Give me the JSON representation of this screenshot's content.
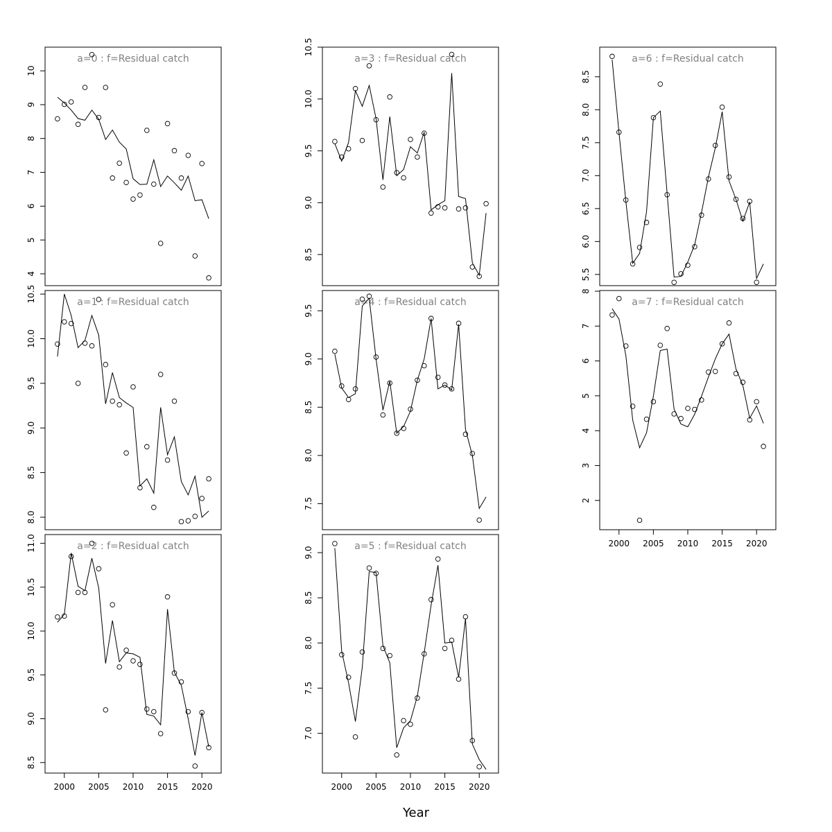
{
  "figure": {
    "xlabel": "Year"
  },
  "chart_data": [
    {
      "type": "scatter",
      "panel": "a=0",
      "title": "a=0  :  f=Residual catch",
      "years": [
        1999,
        2000,
        2001,
        2002,
        2003,
        2004,
        2005,
        2006,
        2007,
        2008,
        2009,
        2010,
        2011,
        2012,
        2013,
        2014,
        2015,
        2016,
        2017,
        2018,
        2019,
        2020,
        2021
      ],
      "observed": [
        8.58,
        9.01,
        9.08,
        8.42,
        9.51,
        10.48,
        8.62,
        9.51,
        6.83,
        7.27,
        6.7,
        6.21,
        6.33,
        8.24,
        6.65,
        4.9,
        8.44,
        7.64,
        6.83,
        7.5,
        4.53,
        7.26,
        3.88
      ],
      "fitted": [
        9.22,
        9.05,
        8.84,
        8.59,
        8.54,
        8.84,
        8.57,
        7.97,
        8.25,
        7.89,
        7.69,
        6.81,
        6.64,
        6.65,
        7.37,
        6.58,
        6.89,
        6.69,
        6.47,
        6.89,
        6.16,
        6.19,
        5.63
      ],
      "xlim": [
        1997.2,
        2022.8
      ],
      "ylim": [
        3.65,
        10.7
      ],
      "yticks": [
        4,
        5,
        6,
        7,
        8,
        9,
        10
      ],
      "xticks": [
        2000,
        2005,
        2010,
        2015,
        2020
      ],
      "show_xaxis": false
    },
    {
      "type": "scatter",
      "panel": "a=1",
      "title": "a=1  :  f=Residual catch",
      "years": [
        1999,
        2000,
        2001,
        2002,
        2003,
        2004,
        2005,
        2006,
        2007,
        2008,
        2009,
        2010,
        2011,
        2012,
        2013,
        2014,
        2015,
        2016,
        2017,
        2018,
        2019,
        2020,
        2021
      ],
      "observed": [
        9.94,
        10.19,
        10.17,
        9.5,
        9.95,
        9.92,
        10.44,
        9.71,
        9.3,
        9.26,
        8.72,
        9.46,
        8.33,
        8.79,
        8.11,
        9.6,
        8.64,
        9.3,
        7.95,
        7.96,
        8.01,
        8.21,
        8.43
      ],
      "fitted": [
        9.8,
        10.5,
        10.26,
        9.9,
        9.98,
        10.26,
        10.04,
        9.27,
        9.62,
        9.34,
        9.28,
        9.23,
        8.35,
        8.43,
        8.27,
        9.23,
        8.7,
        8.9,
        8.4,
        8.25,
        8.46,
        8.0,
        8.07
      ],
      "xlim": [
        1997.2,
        2022.8
      ],
      "ylim": [
        7.86,
        10.54
      ],
      "yticks": [
        8.0,
        8.5,
        9.0,
        9.5,
        10.0,
        10.5
      ],
      "xticks": [
        2000,
        2005,
        2010,
        2015,
        2020
      ],
      "show_xaxis": false
    },
    {
      "type": "scatter",
      "panel": "a=2",
      "title": "a=2  :  f=Residual catch",
      "years": [
        1999,
        2000,
        2001,
        2002,
        2003,
        2004,
        2005,
        2006,
        2007,
        2008,
        2009,
        2010,
        2011,
        2012,
        2013,
        2014,
        2015,
        2016,
        2017,
        2018,
        2019,
        2020,
        2021
      ],
      "observed": [
        10.16,
        10.17,
        10.85,
        10.44,
        10.44,
        11.0,
        10.71,
        9.1,
        10.3,
        9.59,
        9.78,
        9.66,
        9.62,
        9.11,
        9.08,
        8.83,
        10.39,
        9.52,
        9.42,
        9.08,
        8.46,
        9.07,
        8.67
      ],
      "fitted": [
        10.1,
        10.19,
        10.89,
        10.51,
        10.46,
        10.83,
        10.49,
        9.63,
        10.12,
        9.65,
        9.75,
        9.74,
        9.7,
        9.05,
        9.03,
        8.93,
        10.25,
        9.53,
        9.38,
        9.0,
        8.58,
        9.07,
        8.68
      ],
      "xlim": [
        1997.2,
        2022.8
      ],
      "ylim": [
        8.38,
        11.1
      ],
      "yticks": [
        8.5,
        9.0,
        9.5,
        10.0,
        10.5,
        11.0
      ],
      "xticks": [
        2000,
        2005,
        2010,
        2015,
        2020
      ],
      "show_xaxis": true
    },
    {
      "type": "scatter",
      "panel": "a=3",
      "title": "a=3  :  f=Residual catch",
      "years": [
        1999,
        2000,
        2001,
        2002,
        2003,
        2004,
        2005,
        2006,
        2007,
        2008,
        2009,
        2010,
        2011,
        2012,
        2013,
        2014,
        2015,
        2016,
        2017,
        2018,
        2019,
        2020,
        2021
      ],
      "observed": [
        9.59,
        9.44,
        9.52,
        10.1,
        9.6,
        10.32,
        9.8,
        9.15,
        10.02,
        9.29,
        9.24,
        9.61,
        9.44,
        9.67,
        8.9,
        8.96,
        8.95,
        10.43,
        8.94,
        8.95,
        8.38,
        8.29,
        8.99
      ],
      "fitted": [
        9.57,
        9.4,
        9.58,
        10.08,
        9.93,
        10.13,
        9.81,
        9.22,
        9.83,
        9.26,
        9.32,
        9.54,
        9.48,
        9.68,
        8.93,
        8.98,
        9.02,
        10.25,
        9.06,
        9.04,
        8.42,
        8.3,
        8.9
      ],
      "xlim": [
        1997.2,
        2022.8
      ],
      "ylim": [
        8.2,
        10.5
      ],
      "yticks": [
        8.5,
        9.0,
        9.5,
        10.0,
        10.5
      ],
      "xticks": [
        2000,
        2005,
        2010,
        2015,
        2020
      ],
      "show_xaxis": false
    },
    {
      "type": "scatter",
      "panel": "a=4",
      "title": "a=4  :  f=Residual catch",
      "years": [
        1999,
        2000,
        2001,
        2002,
        2003,
        2004,
        2005,
        2006,
        2007,
        2008,
        2009,
        2010,
        2011,
        2012,
        2013,
        2014,
        2015,
        2016,
        2017,
        2018,
        2019,
        2020,
        2021
      ],
      "observed": [
        9.08,
        8.72,
        8.58,
        8.69,
        9.62,
        9.65,
        9.02,
        8.42,
        8.75,
        8.23,
        8.28,
        8.48,
        8.78,
        8.93,
        9.42,
        8.81,
        8.73,
        8.69,
        9.37,
        8.22,
        8.02,
        7.33,
        null
      ],
      "fitted": [
        9.05,
        8.7,
        8.6,
        8.64,
        9.55,
        9.63,
        9.0,
        8.47,
        8.77,
        8.23,
        8.3,
        8.46,
        8.78,
        9.0,
        9.42,
        8.69,
        8.73,
        8.68,
        9.36,
        8.27,
        8.0,
        7.45,
        7.57
      ],
      "xlim": [
        1997.2,
        2022.8
      ],
      "ylim": [
        7.23,
        9.71
      ],
      "yticks": [
        7.5,
        8.0,
        8.5,
        9.0,
        9.5
      ],
      "xticks": [
        2000,
        2005,
        2010,
        2015,
        2020
      ],
      "show_xaxis": false
    },
    {
      "type": "scatter",
      "panel": "a=5",
      "title": "a=5  :  f=Residual catch",
      "years": [
        1999,
        2000,
        2001,
        2002,
        2003,
        2004,
        2005,
        2006,
        2007,
        2008,
        2009,
        2010,
        2011,
        2012,
        2013,
        2014,
        2015,
        2016,
        2017,
        2018,
        2019,
        2020,
        2021
      ],
      "observed": [
        9.1,
        7.87,
        7.62,
        6.96,
        7.9,
        8.83,
        8.77,
        7.94,
        7.86,
        6.76,
        7.14,
        7.1,
        7.39,
        7.88,
        8.48,
        8.93,
        7.94,
        8.03,
        7.6,
        8.29,
        6.92,
        6.63,
        null
      ],
      "fitted": [
        9.05,
        7.91,
        7.56,
        7.13,
        7.73,
        8.79,
        8.78,
        7.97,
        7.78,
        6.84,
        7.06,
        7.14,
        7.41,
        7.89,
        8.42,
        8.86,
        8.0,
        8.01,
        7.62,
        8.27,
        6.88,
        6.71,
        6.6
      ],
      "xlim": [
        1997.2,
        2022.8
      ],
      "ylim": [
        6.56,
        9.2
      ],
      "yticks": [
        7.0,
        7.5,
        8.0,
        8.5,
        9.0
      ],
      "xticks": [
        2000,
        2005,
        2010,
        2015,
        2020
      ],
      "show_xaxis": true
    },
    {
      "type": "scatter",
      "panel": "a=6",
      "title": "a=6  :  f=Residual catch",
      "years": [
        1999,
        2000,
        2001,
        2002,
        2003,
        2004,
        2005,
        2006,
        2007,
        2008,
        2009,
        2010,
        2011,
        2012,
        2013,
        2014,
        2015,
        2016,
        2017,
        2018,
        2019,
        2020,
        2021
      ],
      "observed": [
        8.81,
        7.66,
        6.63,
        5.66,
        5.91,
        6.29,
        7.88,
        8.39,
        6.71,
        5.38,
        5.51,
        5.64,
        5.92,
        6.4,
        6.95,
        7.46,
        8.04,
        6.98,
        6.64,
        6.35,
        6.61,
        5.38,
        null
      ],
      "fitted": [
        8.76,
        7.65,
        6.61,
        5.67,
        5.82,
        6.45,
        7.88,
        7.98,
        6.73,
        5.46,
        5.47,
        5.69,
        5.95,
        6.44,
        6.98,
        7.42,
        7.97,
        6.92,
        6.64,
        6.31,
        6.6,
        5.44,
        5.66
      ],
      "xlim": [
        1997.2,
        2022.8
      ],
      "ylim": [
        5.33,
        8.95
      ],
      "yticks": [
        5.5,
        6.0,
        6.5,
        7.0,
        7.5,
        8.0,
        8.5
      ],
      "xticks": [
        2000,
        2005,
        2010,
        2015,
        2020
      ],
      "show_xaxis": false
    },
    {
      "type": "scatter",
      "panel": "a=7",
      "title": "a=7  :  f=Residual catch",
      "years": [
        1999,
        2000,
        2001,
        2002,
        2003,
        2004,
        2005,
        2006,
        2007,
        2008,
        2009,
        2010,
        2011,
        2012,
        2013,
        2014,
        2015,
        2016,
        2017,
        2018,
        2019,
        2020,
        2021
      ],
      "observed": [
        7.32,
        7.79,
        6.43,
        4.7,
        1.43,
        4.33,
        4.83,
        6.45,
        6.93,
        4.48,
        4.35,
        4.64,
        4.61,
        4.88,
        5.68,
        5.7,
        6.49,
        7.09,
        5.64,
        5.39,
        4.31,
        4.83,
        3.55
      ],
      "fitted": [
        7.5,
        7.2,
        6.15,
        4.3,
        3.51,
        3.94,
        4.99,
        6.3,
        6.34,
        4.62,
        4.19,
        4.11,
        4.47,
        4.99,
        5.54,
        6.06,
        6.49,
        6.77,
        5.77,
        5.3,
        4.36,
        4.71,
        4.21
      ],
      "xlim": [
        1997.2,
        2022.8
      ],
      "ylim": [
        1.16,
        8.02
      ],
      "yticks": [
        2,
        3,
        4,
        5,
        6,
        7,
        8
      ],
      "xticks": [
        2000,
        2005,
        2010,
        2015,
        2020
      ],
      "show_xaxis": true
    }
  ]
}
